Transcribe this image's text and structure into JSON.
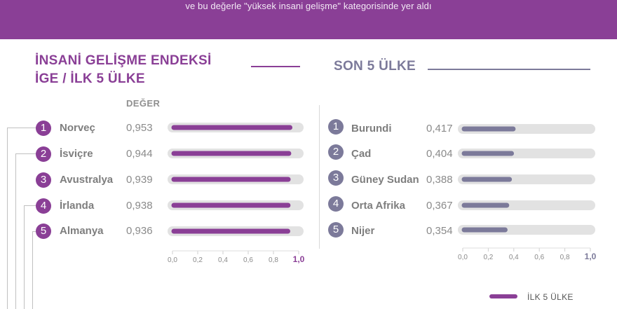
{
  "header": {
    "subtitle": "ve bu değerle \"yüksek insani gelişme\" kategorisinde yer aldı"
  },
  "colors": {
    "purple": "#8a3f96",
    "slate": "#7c7a9a",
    "track": "#e2e2e2"
  },
  "chart_data": [
    {
      "type": "bar",
      "title": "İNSANİ GELİŞME ENDEKSİ",
      "subtitle": "İGE / İLK 5 ÜLKE",
      "value_header": "DEĞER",
      "ranks": [
        "1",
        "2",
        "3",
        "4",
        "5"
      ],
      "categories": [
        "Norveç",
        "İsviçre",
        "Avustralya",
        "İrlanda",
        "Almanya"
      ],
      "values": [
        0.953,
        0.944,
        0.939,
        0.938,
        0.936
      ],
      "value_labels": [
        "0,953",
        "0,944",
        "0,939",
        "0,938",
        "0,936"
      ],
      "xlim": [
        0,
        1.0
      ],
      "xticks": [
        "0,0",
        "0,2",
        "0,4",
        "0,6",
        "0,8",
        "1,0"
      ]
    },
    {
      "type": "bar",
      "title": "SON 5 ÜLKE",
      "ranks": [
        "1",
        "2",
        "3",
        "4",
        "5"
      ],
      "categories": [
        "Burundi",
        "Çad",
        "Güney Sudan",
        "Orta Afrika",
        "Nijer"
      ],
      "values": [
        0.417,
        0.404,
        0.388,
        0.367,
        0.354
      ],
      "value_labels": [
        "0,417",
        "0,404",
        "0,388",
        "0,367",
        "0,354"
      ],
      "xlim": [
        0,
        1.0
      ],
      "xticks": [
        "0,0",
        "0,2",
        "0,4",
        "0,6",
        "0,8",
        "1,0"
      ]
    }
  ],
  "legend": {
    "top5": "İLK 5 ÜLKE"
  }
}
